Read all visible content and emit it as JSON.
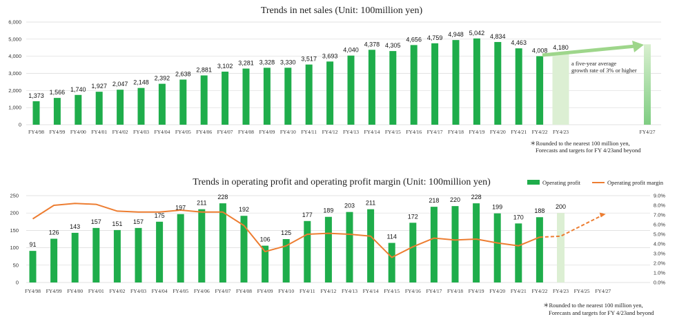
{
  "colors": {
    "bar": "#1fad4b",
    "forecast_bar_light": "#dcefd3",
    "forecast_bar_dark": "#9fd89c",
    "line": "#ed7d31",
    "arrow": "#9ed68b"
  },
  "chart_data": [
    {
      "type": "bar",
      "title": "Trends in net sales (Unit: 100million yen)",
      "categories": [
        "FY4/98",
        "FY4/99",
        "FY4/00",
        "FY4/01",
        "FY4/02",
        "FY4/03",
        "FY4/04",
        "FY4/05",
        "FY4/06",
        "FY4/07",
        "FY4/08",
        "FY4/09",
        "FY4/10",
        "FY4/11",
        "FY4/12",
        "FY4/13",
        "FY4/14",
        "FY4/15",
        "FY4/16",
        "FY4/17",
        "FY4/18",
        "FY4/19",
        "FY4/20",
        "FY4/21",
        "FY4/22",
        "FY4/23",
        "FY4/27"
      ],
      "values": [
        1373,
        1566,
        1740,
        1927,
        2047,
        2148,
        2392,
        2638,
        2881,
        3102,
        3281,
        3328,
        3330,
        3517,
        3693,
        4040,
        4378,
        4305,
        4656,
        4759,
        4948,
        5042,
        4834,
        4463,
        4008,
        4180,
        4700
      ],
      "labels": [
        "1,373",
        "1,566",
        "1,740",
        "1,927",
        "2,047",
        "2,148",
        "2,392",
        "2,638",
        "2,881",
        "3,102",
        "3,281",
        "3,328",
        "3,330",
        "3,517",
        "3,693",
        "4,040",
        "4,378",
        "4,305",
        "4,656",
        "4,759",
        "4,948",
        "5,042",
        "4,834",
        "4,463",
        "4,008",
        "4,180",
        ""
      ],
      "ylim": [
        0,
        6000
      ],
      "yticks": [
        "0",
        "1,000",
        "2,000",
        "3,000",
        "4,000",
        "5,000",
        "6,000"
      ],
      "grid": true,
      "annotation": [
        "a five-year average",
        "growth rate of 3% or higher"
      ],
      "note": [
        "＊Rounded to the nearest 100 million yen,",
        "Forecasts and targets for FY 4/23and beyond"
      ]
    },
    {
      "type": "bar",
      "title": "Trends in operating profit and operating profit margin (Unit: 100million yen)",
      "categories": [
        "FY4/98",
        "FY4/99",
        "FY4/00",
        "FY4/01",
        "FY4/02",
        "FY4/03",
        "FY4/04",
        "FY4/05",
        "FY4/06",
        "FY4/07",
        "FY4/08",
        "FY4/09",
        "FY4/10",
        "FY4/11",
        "FY4/12",
        "FY4/13",
        "FY4/14",
        "FY4/15",
        "FY4/16",
        "FY4/17",
        "FY4/18",
        "FY4/19",
        "FY4/20",
        "FY4/21",
        "FY4/22",
        "FY4/23",
        "FY4/25",
        "FY4/27"
      ],
      "series": [
        {
          "name": "Operating profit",
          "type": "bar",
          "values": [
            91,
            126,
            143,
            157,
            151,
            157,
            175,
            197,
            211,
            228,
            192,
            106,
            125,
            177,
            189,
            203,
            211,
            114,
            172,
            218,
            220,
            228,
            199,
            170,
            188,
            200,
            null,
            null
          ]
        },
        {
          "name": "Operating profit margin",
          "type": "line",
          "values": [
            6.6,
            8.0,
            8.2,
            8.1,
            7.4,
            7.3,
            7.3,
            7.5,
            7.3,
            7.3,
            5.9,
            3.2,
            3.8,
            5.0,
            5.1,
            5.0,
            4.8,
            2.6,
            3.7,
            4.6,
            4.4,
            4.5,
            4.1,
            3.8,
            4.7,
            4.8,
            null,
            7.0
          ]
        }
      ],
      "bar_labels": [
        "91",
        "126",
        "143",
        "157",
        "151",
        "157",
        "175",
        "197",
        "211",
        "228",
        "192",
        "106",
        "125",
        "177",
        "189",
        "203",
        "211",
        "114",
        "172",
        "218",
        "220",
        "228",
        "199",
        "170",
        "188",
        "200",
        "",
        ""
      ],
      "ylim_left": [
        0,
        250
      ],
      "yticks_left": [
        "0",
        "50",
        "100",
        "150",
        "200",
        "250"
      ],
      "ylim_right": [
        0,
        9
      ],
      "yticks_right": [
        "0.0%",
        "1.0%",
        "2.0%",
        "3.0%",
        "4.0%",
        "5.0%",
        "6.0%",
        "7.0%",
        "8.0%",
        "9.0%"
      ],
      "legend": "top-right",
      "grid": true,
      "note": [
        "＊Rounded to the nearest 100 million yen,",
        "Forecasts and targets for FY 4/23and beyond"
      ]
    }
  ]
}
